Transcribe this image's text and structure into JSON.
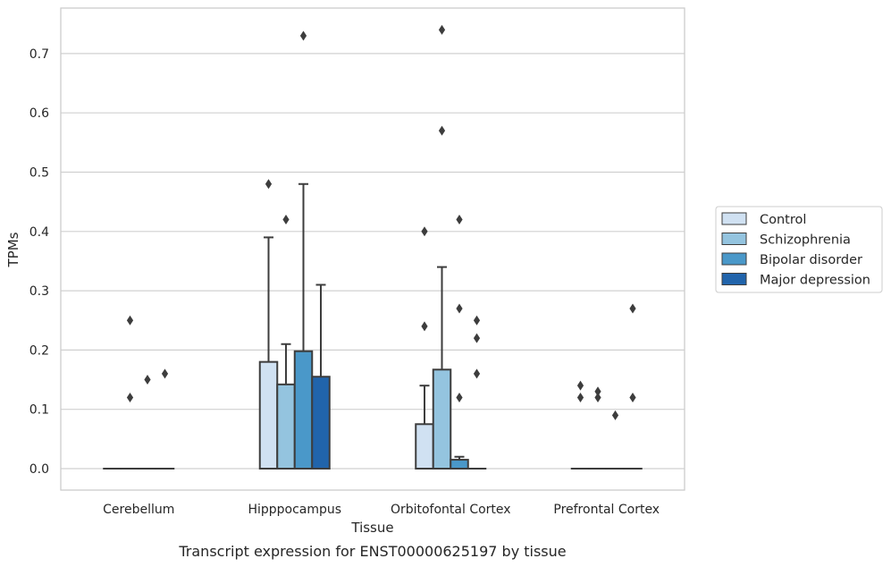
{
  "chart_data": {
    "type": "bar",
    "xlabel": "Tissue",
    "ylabel": "TPMs",
    "caption": "Transcript expression for ENST00000625197 by tissue",
    "ylim": [
      -0.035,
      0.775
    ],
    "yticks": [
      0.0,
      0.1,
      0.2,
      0.3,
      0.4,
      0.5,
      0.6,
      0.7
    ],
    "ytick_labels": [
      "0.0",
      "0.1",
      "0.2",
      "0.3",
      "0.4",
      "0.5",
      "0.6",
      "0.7"
    ],
    "grid": "horizontal",
    "legend_position": "right",
    "categories": [
      "Cerebellum",
      "Hipppocampus",
      "Orbitofontal Cortex",
      "Prefrontal Cortex"
    ],
    "series": [
      {
        "name": "Control",
        "color": "#d0e1f2",
        "values": [
          0.0,
          0.18,
          0.075,
          0.0
        ],
        "whisker_high": [
          null,
          0.39,
          0.14,
          null
        ],
        "outliers": [
          [],
          [
            0.48
          ],
          [
            0.24,
            0.4
          ],
          [
            0.12,
            0.14
          ]
        ]
      },
      {
        "name": "Schizophrenia",
        "color": "#94c4df",
        "values": [
          0.0,
          0.142,
          0.167,
          0.0
        ],
        "whisker_high": [
          null,
          0.21,
          0.34,
          null
        ],
        "outliers": [
          [
            0.12,
            0.25
          ],
          [
            0.42
          ],
          [
            0.57,
            0.74
          ],
          [
            0.12,
            0.13
          ]
        ]
      },
      {
        "name": "Bipolar disorder",
        "color": "#4a98c9",
        "values": [
          0.0,
          0.198,
          0.015,
          0.0
        ],
        "whisker_high": [
          null,
          0.48,
          0.02,
          null
        ],
        "outliers": [
          [
            0.15
          ],
          [
            0.73
          ],
          [
            0.12,
            0.27,
            0.42
          ],
          [
            0.09
          ]
        ]
      },
      {
        "name": "Major depression",
        "color": "#2164ab",
        "values": [
          0.0,
          0.155,
          0.0,
          0.0
        ],
        "whisker_high": [
          null,
          0.31,
          null,
          null
        ],
        "outliers": [
          [
            0.16
          ],
          [],
          [
            0.16,
            0.22,
            0.25
          ],
          [
            0.12,
            0.27
          ]
        ]
      }
    ]
  }
}
